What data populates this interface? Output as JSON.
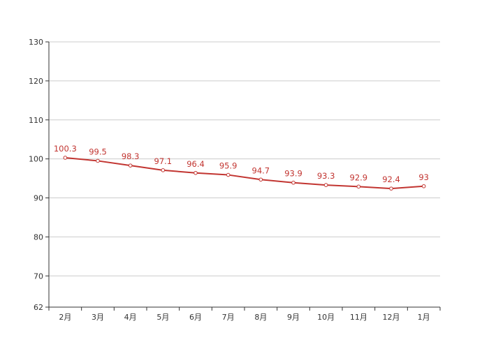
{
  "chart_data": {
    "type": "line",
    "categories": [
      "2月",
      "3月",
      "4月",
      "5月",
      "6月",
      "7月",
      "8月",
      "9月",
      "10月",
      "11月",
      "12月",
      "1月"
    ],
    "series": [
      {
        "values": [
          100.3,
          99.5,
          98.3,
          97.1,
          96.4,
          95.9,
          94.7,
          93.9,
          93.3,
          92.9,
          92.4,
          93
        ],
        "color": "#c23531"
      }
    ],
    "ylim": [
      62,
      130
    ],
    "yticks": [
      62,
      70,
      80,
      90,
      100,
      110,
      120,
      130
    ],
    "grid": true,
    "data_labels": true,
    "legend": "none"
  }
}
